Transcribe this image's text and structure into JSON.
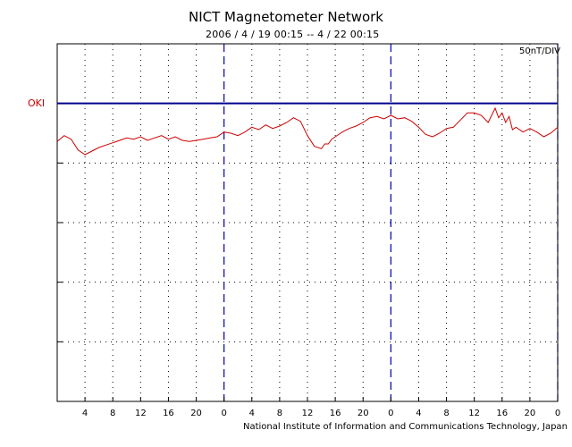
{
  "chart_data": {
    "type": "line",
    "title": "NICT Magnetometer Network",
    "subtitle": "2006 / 4 / 19   00:15 --  4 / 22   00:15",
    "scale_label": "50nT/DIV",
    "station": "OKI",
    "credit": "National Institute of Information and Communications Technology, Japan",
    "colors": {
      "trace": "#cc0000",
      "baseline": "#00008b",
      "day_divider": "#0000aa",
      "grid": "#000000"
    },
    "x_unit": "hours from 2006-04-19 00:15",
    "xlim": [
      0,
      72
    ],
    "ylim": [
      -250,
      50
    ],
    "y_div_nT": 50,
    "baseline_nT": 0,
    "day_boundaries": [
      24,
      48,
      72
    ],
    "x_tick_labels": [
      {
        "x": 4,
        "label": "4"
      },
      {
        "x": 8,
        "label": "8"
      },
      {
        "x": 12,
        "label": "12"
      },
      {
        "x": 16,
        "label": "16"
      },
      {
        "x": 20,
        "label": "20"
      },
      {
        "x": 24,
        "label": "0"
      },
      {
        "x": 28,
        "label": "4"
      },
      {
        "x": 32,
        "label": "8"
      },
      {
        "x": 36,
        "label": "12"
      },
      {
        "x": 40,
        "label": "16"
      },
      {
        "x": 44,
        "label": "20"
      },
      {
        "x": 48,
        "label": "0"
      },
      {
        "x": 52,
        "label": "4"
      },
      {
        "x": 56,
        "label": "8"
      },
      {
        "x": 60,
        "label": "12"
      },
      {
        "x": 64,
        "label": "16"
      },
      {
        "x": 68,
        "label": "20"
      },
      {
        "x": 72,
        "label": "0"
      }
    ],
    "series": [
      {
        "name": "OKI",
        "x": [
          0,
          1,
          2,
          3,
          4,
          5,
          6,
          7,
          8,
          9,
          10,
          11,
          12,
          13,
          14,
          15,
          16,
          17,
          18,
          19,
          20,
          21,
          22,
          23,
          24,
          25,
          26,
          27,
          28,
          29,
          30,
          31,
          32,
          33,
          34,
          35,
          36,
          37,
          38,
          38.5,
          39,
          39.5,
          40,
          41,
          42,
          43,
          44,
          45,
          46,
          47,
          48,
          49,
          50,
          51,
          52,
          53,
          54,
          55,
          56,
          57,
          58,
          59,
          60,
          61,
          62,
          63,
          63.5,
          64,
          64.5,
          65,
          65.5,
          66,
          67,
          68,
          69,
          70,
          71,
          72
        ],
        "values": [
          -32,
          -27,
          -30,
          -39,
          -43,
          -40,
          -37,
          -35,
          -33,
          -31,
          -29,
          -30,
          -28,
          -31,
          -29,
          -27,
          -30,
          -28,
          -31,
          -32,
          -31,
          -30,
          -29,
          -28,
          -24,
          -25,
          -27,
          -24,
          -20,
          -22,
          -18,
          -21,
          -19,
          -16,
          -12,
          -15,
          -27,
          -36,
          -38,
          -34,
          -34,
          -30,
          -28,
          -24,
          -21,
          -19,
          -16,
          -12,
          -11,
          -13,
          -10,
          -13,
          -12,
          -15,
          -20,
          -26,
          -28,
          -25,
          -21,
          -20,
          -14,
          -8,
          -8,
          -10,
          -16,
          -4,
          -12,
          -8,
          -16,
          -11,
          -22,
          -20,
          -24,
          -21,
          -24,
          -28,
          -25,
          -20
        ]
      }
    ]
  }
}
